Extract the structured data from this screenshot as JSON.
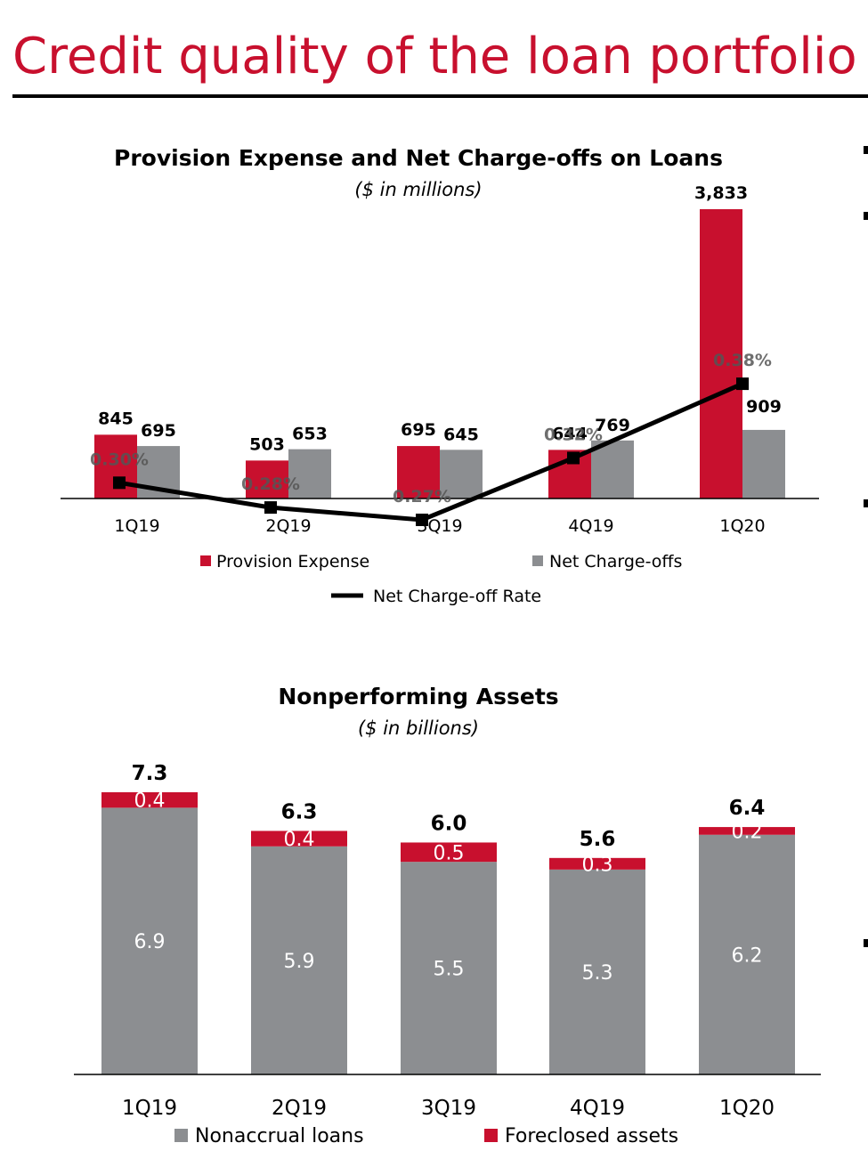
{
  "page": {
    "title": "Credit quality of the loan portfolio",
    "title_color": "#c8102e"
  },
  "colors": {
    "provision": "#c8102e",
    "charge_offs": "#8c8e91",
    "rate_line": "#000000",
    "foreclosed": "#c8102e",
    "nonaccrual": "#8c8e91"
  },
  "chart_data": [
    {
      "type": "bar",
      "title": "Provision Expense and Net Charge-offs on Loans",
      "subtitle": "($ in millions)",
      "categories": [
        "1Q19",
        "2Q19",
        "3Q19",
        "4Q19",
        "1Q20"
      ],
      "series": [
        {
          "name": "Provision Expense",
          "values": [
            845,
            503,
            695,
            644,
            3833
          ],
          "labels": [
            "845",
            "503",
            "695",
            "644",
            "3,833"
          ]
        },
        {
          "name": "Net Charge-offs",
          "values": [
            695,
            653,
            645,
            769,
            909
          ],
          "labels": [
            "695",
            "653",
            "645",
            "769",
            "909"
          ]
        },
        {
          "name": "Net Charge-off Rate",
          "type": "line",
          "values": [
            0.3,
            0.28,
            0.27,
            0.32,
            0.38
          ],
          "labels": [
            "0.30%",
            "0.28%",
            "0.27%",
            "0.32%",
            "0.38%"
          ]
        }
      ],
      "ylim": [
        0,
        3900
      ],
      "grid": false,
      "legend": "bottom"
    },
    {
      "type": "bar",
      "stacked": true,
      "title": "Nonperforming Assets",
      "subtitle": "($ in billions)",
      "categories": [
        "1Q19",
        "2Q19",
        "3Q19",
        "4Q19",
        "1Q20"
      ],
      "series": [
        {
          "name": "Nonaccrual loans",
          "values": [
            6.9,
            5.9,
            5.5,
            5.3,
            6.2
          ],
          "labels": [
            "6.9",
            "5.9",
            "5.5",
            "5.3",
            "6.2"
          ]
        },
        {
          "name": "Foreclosed assets",
          "values": [
            0.4,
            0.4,
            0.5,
            0.3,
            0.2
          ],
          "labels": [
            "0.4",
            "0.4",
            "0.5",
            "0.3",
            "0.2"
          ]
        }
      ],
      "totals": [
        "7.3",
        "6.3",
        "6.0",
        "5.6",
        "6.4"
      ],
      "ylim": [
        0,
        7.3
      ],
      "grid": false,
      "legend": "bottom"
    }
  ]
}
